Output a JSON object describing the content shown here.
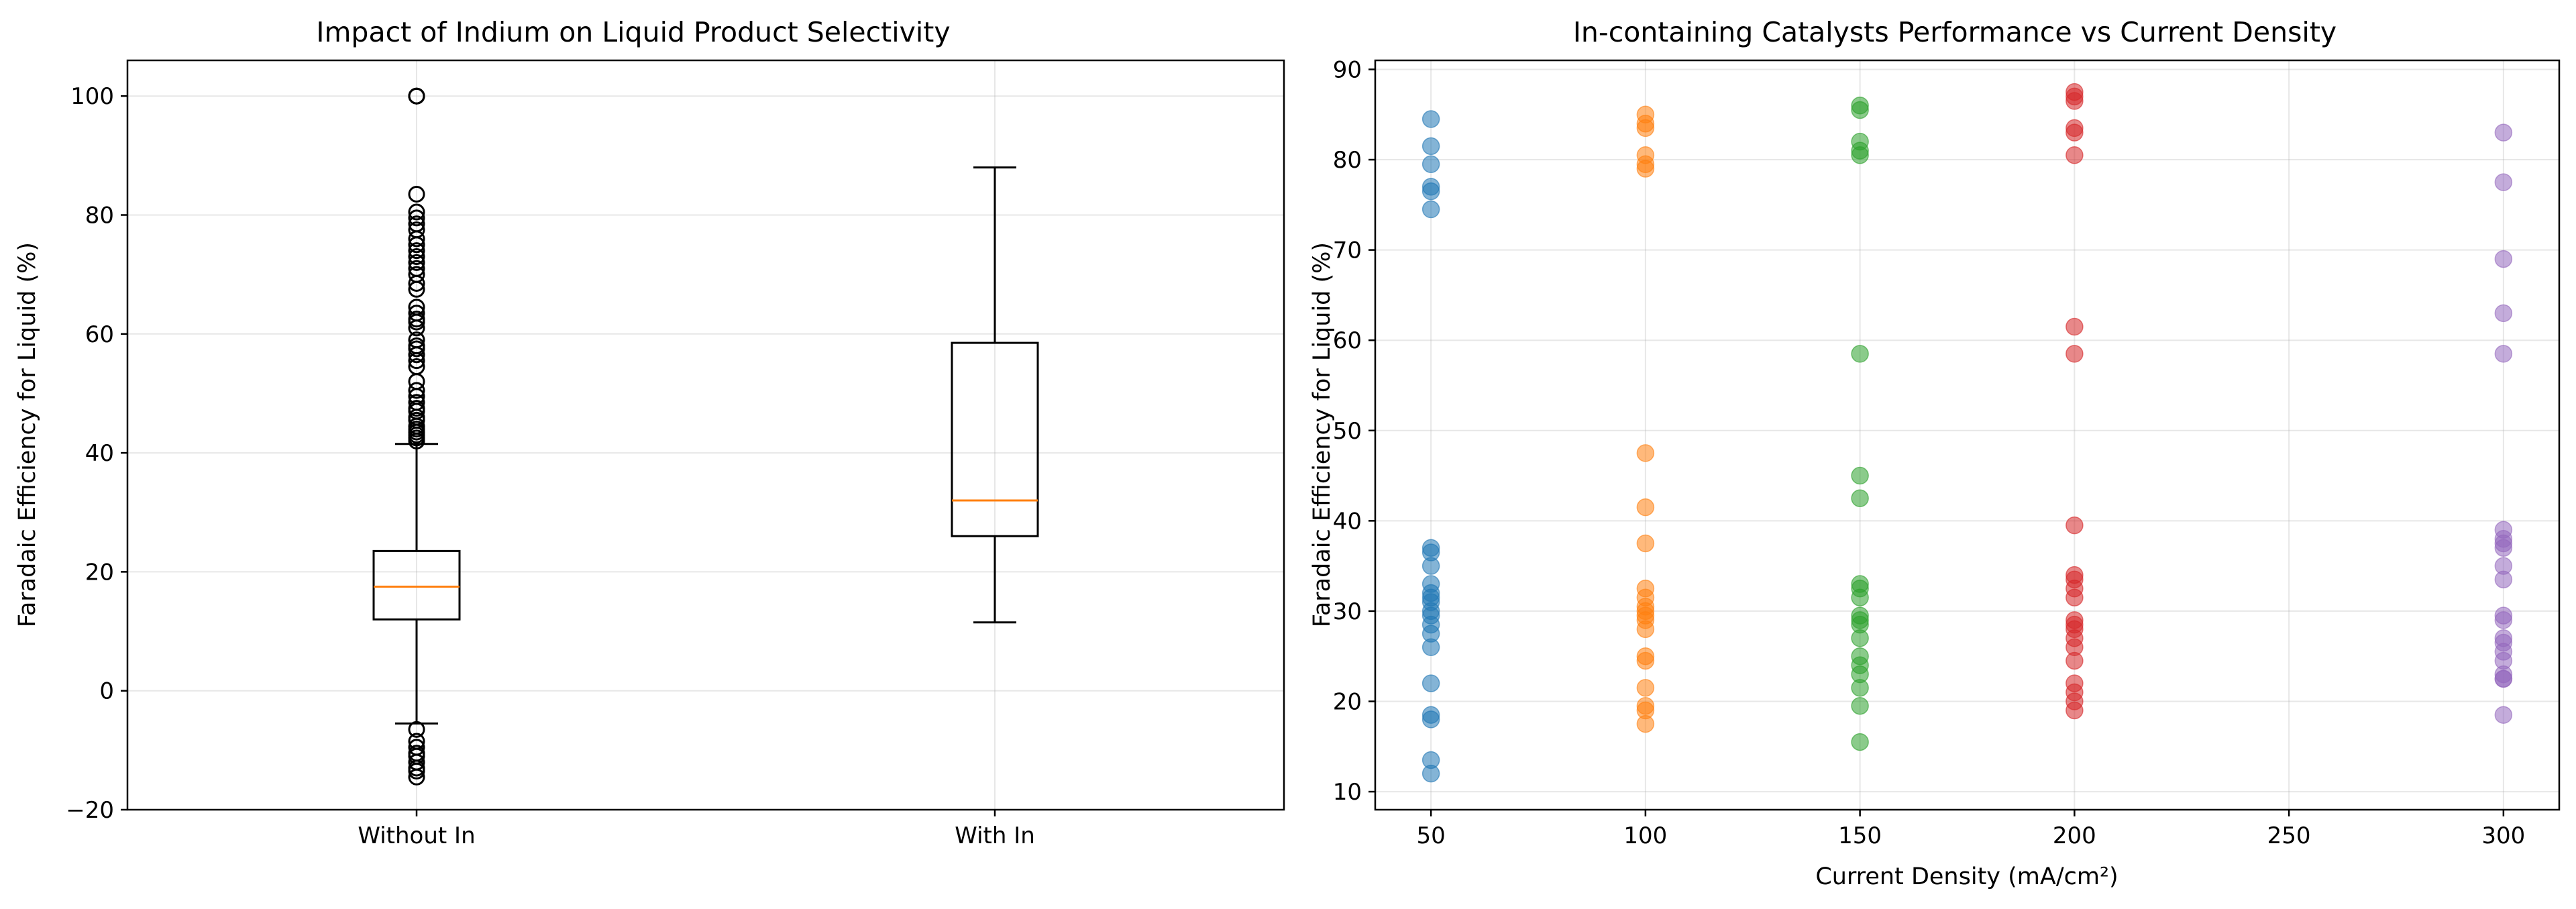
{
  "chart_data": [
    {
      "type": "box",
      "title": "Impact of Indium on Liquid Product Selectivity",
      "xlabel": "",
      "ylabel": "Faradaic Efficiency for Liquid (%)",
      "categories": [
        "Without In",
        "With In"
      ],
      "ylim": [
        -20,
        106
      ],
      "yticks": [
        -20,
        0,
        20,
        40,
        60,
        80,
        100
      ],
      "ytick_labels": [
        "−20",
        "0",
        "20",
        "40",
        "60",
        "80",
        "100"
      ],
      "grid": true,
      "colors": {
        "box": "#000000",
        "median": "#ff7f0e"
      },
      "boxes": [
        {
          "label": "Without In",
          "whisker_low": -5.5,
          "q1": 12.0,
          "median": 17.5,
          "q3": 23.5,
          "whisker_high": 41.5,
          "outliers": [
            100,
            100,
            100,
            83.5,
            80.5,
            79.5,
            78.5,
            77.5,
            76,
            75,
            74,
            73,
            72,
            71,
            70,
            68.5,
            67.5,
            64.5,
            63.5,
            62.5,
            62,
            61,
            59,
            58,
            57.5,
            56.5,
            55.5,
            54.5,
            52,
            50.5,
            49.5,
            48.5,
            47.5,
            47,
            46,
            45.5,
            44.5,
            44,
            43.5,
            43,
            42.5,
            42,
            -6.5,
            -8.5,
            -9.5,
            -10.5,
            -11,
            -12,
            -13,
            -13.5,
            -14.5
          ]
        },
        {
          "label": "With In",
          "whisker_low": 11.5,
          "q1": 26.0,
          "median": 32.0,
          "q3": 58.5,
          "whisker_high": 88.0,
          "outliers": []
        }
      ]
    },
    {
      "type": "scatter",
      "title": "In-containing Catalysts Performance vs Current Density",
      "xlabel": "Current Density (mA/cm²)",
      "ylabel": "Faradaic Efficiency for Liquid (%)",
      "xlim": [
        37,
        313
      ],
      "ylim": [
        8,
        91
      ],
      "xticks": [
        50,
        100,
        150,
        200,
        250,
        300
      ],
      "yticks": [
        10,
        20,
        30,
        40,
        50,
        60,
        70,
        80,
        90
      ],
      "grid": true,
      "series": [
        {
          "x": 50,
          "color": "#1f77b4",
          "y": [
            84.5,
            81.5,
            79.5,
            77,
            76.5,
            74.5,
            37,
            36.5,
            35,
            33,
            32,
            31.5,
            31,
            30,
            29.5,
            28.5,
            27.5,
            26,
            22,
            18.5,
            18,
            13.5,
            12
          ]
        },
        {
          "x": 100,
          "color": "#ff7f0e",
          "y": [
            85,
            84,
            83.5,
            80.5,
            79.5,
            79,
            47.5,
            41.5,
            37.5,
            32.5,
            31.5,
            30.5,
            30,
            29.5,
            29,
            28,
            25,
            24.5,
            21.5,
            19.5,
            19,
            17.5
          ]
        },
        {
          "x": 150,
          "color": "#2ca02c",
          "y": [
            86,
            85.5,
            82,
            81,
            80.5,
            58.5,
            45,
            42.5,
            33,
            32.5,
            31.5,
            29.5,
            29,
            28.5,
            27,
            25,
            24,
            23,
            21.5,
            19.5,
            15.5
          ]
        },
        {
          "x": 200,
          "color": "#d62728",
          "y": [
            87.5,
            87,
            86.5,
            83.5,
            83,
            80.5,
            61.5,
            58.5,
            39.5,
            34,
            33.5,
            32.5,
            31.5,
            29,
            28.5,
            28,
            27,
            26,
            24.5,
            22,
            21,
            20,
            19
          ]
        },
        {
          "x": 300,
          "color": "#9467bd",
          "y": [
            83,
            77.5,
            69,
            63,
            58.5,
            39,
            38,
            37.5,
            37,
            35,
            33.5,
            29.5,
            29,
            27,
            26.5,
            25.5,
            24.5,
            23,
            22.5,
            22.5,
            18.5
          ]
        }
      ]
    }
  ]
}
